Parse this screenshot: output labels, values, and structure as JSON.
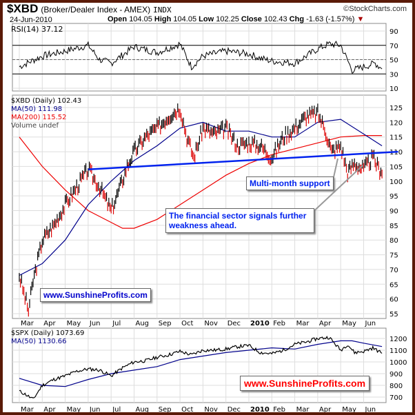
{
  "header": {
    "symbol": "$XBD",
    "name": "(Broker/Dealer Index - AMEX)",
    "exchange": "INDX",
    "source": "©StockCharts.com",
    "date": "24-Jun-2010",
    "open_label": "Open",
    "open": "104.05",
    "high_label": "High",
    "high": "104.05",
    "low_label": "Low",
    "low": "102.25",
    "close_label": "Close",
    "close": "102.43",
    "chg_label": "Chg",
    "chg": "-1.63 (-1.57%)",
    "down_arrow": "▼"
  },
  "colors": {
    "border": "#5a1a08",
    "ma50": "#00008b",
    "ma200": "#ee0000",
    "support": "#0022ee",
    "watermark_red": "#ff0000",
    "watermark_blue": "#0000cc"
  },
  "annotations": {
    "support": "Multi-month support",
    "weakness": "The financial sector signals further weakness ahead.",
    "watermark1": "www.SunshineProfits.com",
    "watermark2": "www.SunshineProfits.com"
  },
  "chart_data": [
    {
      "type": "line",
      "title": "RSI(14) 37.12",
      "legend": [
        "RSI(14) 37.12"
      ],
      "yticks": [
        90,
        70,
        50,
        30,
        10
      ],
      "ylim": [
        0,
        95
      ],
      "x_months": [
        0,
        1,
        2,
        3,
        3.5,
        4,
        5,
        6,
        7,
        7.5,
        8,
        9,
        10,
        10.5,
        11,
        12,
        13,
        13.5,
        14,
        14.5,
        15,
        15.5,
        15.8
      ],
      "values": [
        40,
        55,
        62,
        70,
        50,
        45,
        68,
        60,
        72,
        40,
        55,
        62,
        58,
        52,
        48,
        45,
        65,
        72,
        70,
        35,
        40,
        45,
        37
      ]
    },
    {
      "type": "line",
      "title": "$XBD (Daily) 102.43",
      "legend": [
        "$XBD (Daily) 102.43",
        "MA(50) 111.98",
        "MA(200) 115.52",
        "Volume undef"
      ],
      "yticks": [
        125,
        120,
        115,
        110,
        105,
        100,
        95,
        90,
        85,
        80,
        75,
        70,
        65,
        60,
        55
      ],
      "ylim": [
        54,
        128
      ],
      "x_months": [
        0,
        0.2,
        0.4,
        0.6,
        1,
        1.5,
        2,
        2.5,
        3,
        3.5,
        4,
        4.3,
        4.7,
        5,
        5.5,
        6,
        6.5,
        7,
        7.3,
        7.6,
        8,
        8.5,
        9,
        9.5,
        10,
        10.5,
        11,
        11.5,
        12,
        12.5,
        13,
        13.3,
        13.6,
        14,
        14.3,
        14.6,
        15,
        15.4,
        15.8
      ],
      "series": [
        {
          "name": "$XBD",
          "values": [
            68,
            62,
            56,
            66,
            80,
            85,
            92,
            98,
            104,
            98,
            90,
            96,
            105,
            110,
            115,
            118,
            122,
            125,
            115,
            108,
            118,
            116,
            118,
            112,
            113,
            112,
            108,
            115,
            118,
            122,
            123,
            118,
            110,
            112,
            103,
            106,
            104,
            108,
            102.43
          ]
        },
        {
          "name": "MA(50)",
          "x_months": [
            0,
            1,
            2,
            3,
            4,
            5,
            6,
            7,
            8,
            9,
            10,
            11,
            12,
            13,
            14,
            15,
            15.8
          ],
          "values": [
            68,
            72,
            80,
            92,
            100,
            107,
            112,
            118,
            120,
            117,
            117,
            115,
            115,
            120,
            121,
            116,
            112
          ]
        },
        {
          "name": "MA(200)",
          "x_months": [
            0,
            1,
            2,
            3,
            4,
            4.5,
            5,
            6,
            7,
            8,
            9,
            10,
            11,
            12,
            13,
            14,
            15,
            15.8
          ],
          "values": [
            115,
            105,
            97,
            90,
            86,
            84,
            84,
            87,
            92,
            97,
            102,
            106,
            109,
            111,
            113,
            115,
            115.5,
            115.5
          ]
        },
        {
          "name": "Support",
          "x_months": [
            3,
            16.5
          ],
          "values": [
            104,
            110
          ]
        }
      ]
    },
    {
      "type": "line",
      "title": "$SPX (Daily) 1073.69",
      "legend": [
        "$SPX (Daily) 1073.69",
        "MA(50) 1130.66"
      ],
      "yticks": [
        1200,
        1100,
        1000,
        900,
        800,
        700
      ],
      "ylim": [
        650,
        1250
      ],
      "x_months": [
        0,
        0.3,
        0.6,
        1,
        1.5,
        2,
        2.5,
        3,
        3.5,
        4,
        4.5,
        5,
        5.5,
        6,
        6.5,
        7,
        7.5,
        8,
        8.5,
        9,
        9.5,
        10,
        10.5,
        11,
        11.5,
        12,
        12.5,
        13,
        13.5,
        14,
        14.3,
        14.6,
        15,
        15.4,
        15.8
      ],
      "series": [
        {
          "name": "$SPX",
          "values": [
            750,
            720,
            680,
            800,
            850,
            880,
            920,
            940,
            930,
            880,
            950,
            1000,
            1010,
            1040,
            1060,
            1090,
            1060,
            1100,
            1100,
            1110,
            1130,
            1140,
            1080,
            1070,
            1100,
            1150,
            1170,
            1200,
            1210,
            1100,
            1150,
            1080,
            1090,
            1120,
            1073.69
          ]
        },
        {
          "name": "MA(50)",
          "x_months": [
            0,
            1,
            2,
            3,
            4,
            5,
            6,
            7,
            8,
            9,
            10,
            11,
            12,
            13,
            14,
            14.5,
            15,
            15.8
          ],
          "values": [
            860,
            800,
            790,
            850,
            900,
            930,
            960,
            1020,
            1050,
            1080,
            1100,
            1120,
            1110,
            1150,
            1180,
            1180,
            1160,
            1131
          ]
        }
      ]
    }
  ],
  "x_labels": [
    "Mar",
    "Apr",
    "May",
    "Jun",
    "Jul",
    "Aug",
    "Sep",
    "Oct",
    "Nov",
    "Dec",
    "2010",
    "Feb",
    "Mar",
    "Apr",
    "May",
    "Jun"
  ]
}
